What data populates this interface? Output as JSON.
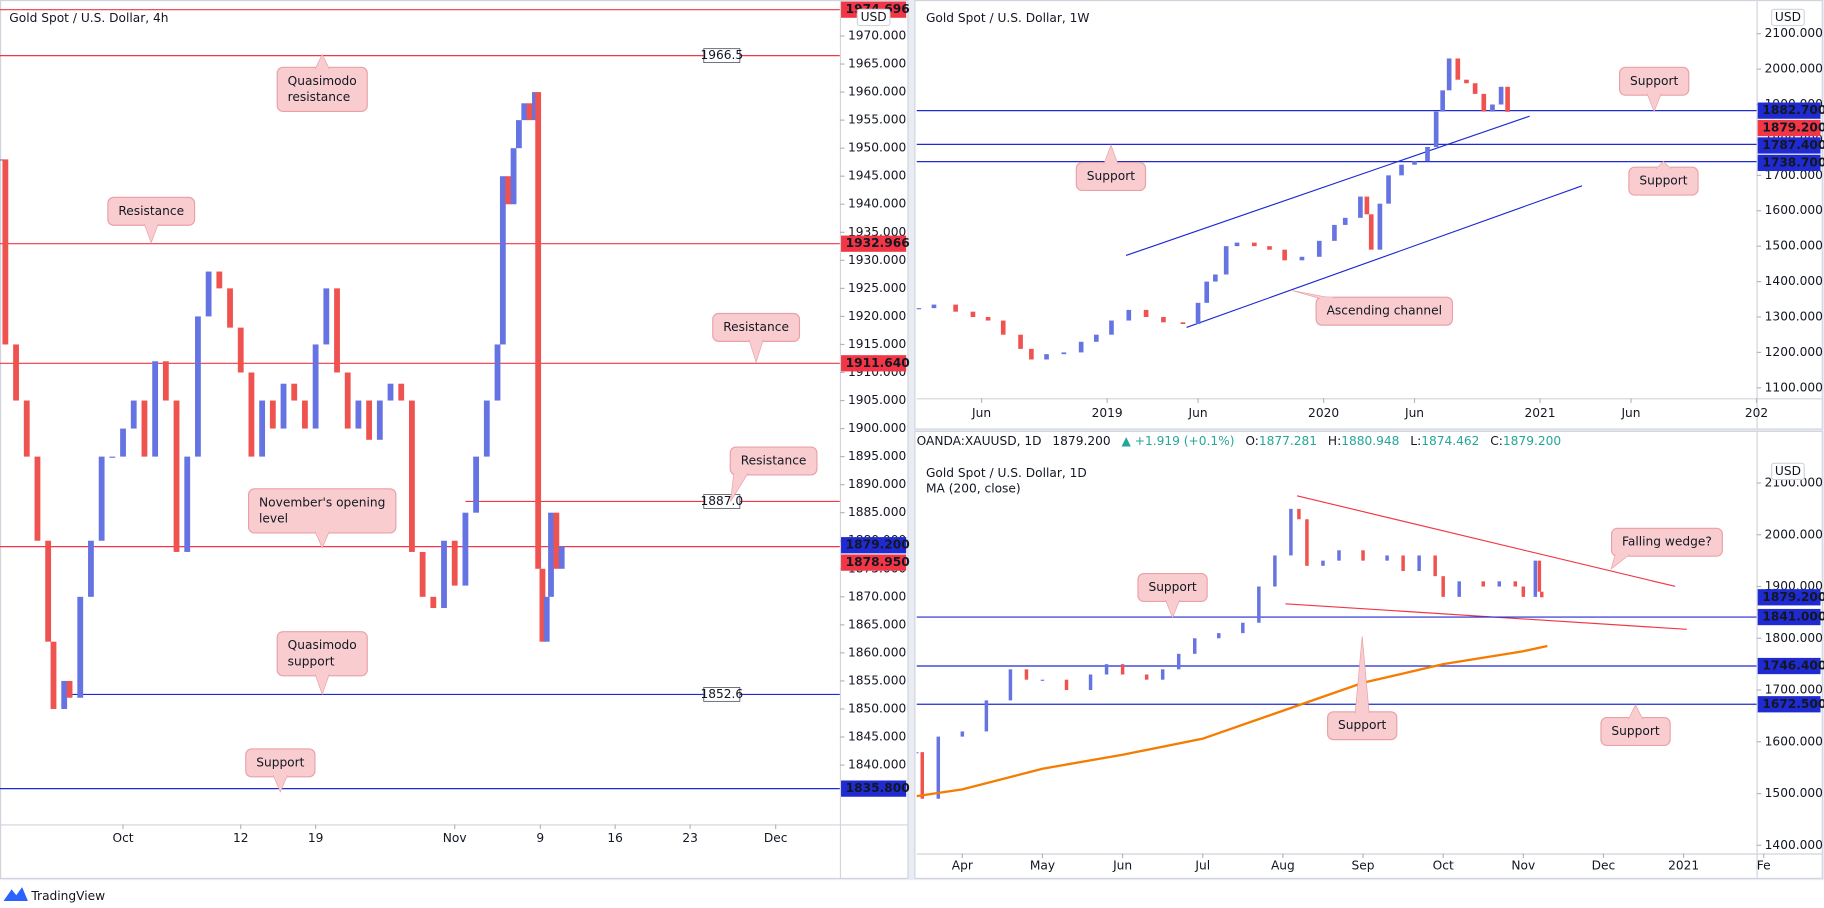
{
  "chart_data": [
    {
      "type": "candlestick",
      "title": "Gold Spot / U.S. Dollar, 4h",
      "currency": "USD",
      "up_color": "#6674e3",
      "down_color": "#ef5350",
      "grid": false,
      "x": [
        -10.5,
        -10,
        -9,
        -8,
        -7,
        -6,
        -5.5,
        -4.5,
        -4,
        -3,
        -2,
        -1,
        0,
        1,
        2,
        3,
        4,
        5,
        6,
        7,
        8,
        9,
        10,
        11,
        12,
        13,
        14,
        15,
        16,
        17,
        18,
        19,
        20,
        21,
        22,
        23,
        24,
        25,
        26,
        27,
        28,
        29,
        30,
        31,
        32,
        33,
        34,
        35,
        36,
        36.5,
        37,
        37.5,
        38,
        38.5,
        39,
        39.5,
        39.8,
        40.2,
        40.6,
        41,
        41.5,
        42
      ],
      "values": [
        1948,
        1915,
        1905,
        1895,
        1880,
        1862,
        1850,
        1855,
        1852,
        1870,
        1880,
        1895,
        1895,
        1900,
        1905,
        1895,
        1912,
        1905,
        1878,
        1895,
        1920,
        1928,
        1925,
        1918,
        1910,
        1895,
        1905,
        1900,
        1908,
        1905,
        1900,
        1915,
        1925,
        1910,
        1900,
        1905,
        1898,
        1905,
        1908,
        1905,
        1878,
        1870,
        1868,
        1880,
        1872,
        1885,
        1895,
        1905,
        1915,
        1945,
        1940,
        1950,
        1955,
        1958,
        1955,
        1960,
        1875,
        1862,
        1870,
        1885,
        1875,
        1879
      ],
      "xlim": [
        -10.5,
        68
      ],
      "xticks": [
        {
          "value": 1,
          "label": "Oct"
        },
        12,
        19,
        {
          "value": 32,
          "label": "Nov"
        },
        {
          "value": 40,
          "label": "9"
        },
        {
          "value": 47,
          "label": "16"
        },
        {
          "value": 54,
          "label": "23"
        },
        {
          "value": 62,
          "label": "Dec"
        }
      ],
      "ylim": [
        1829.42,
        1976.42
      ],
      "yticks": [
        {
          "value": 1840,
          "label": "1840.000"
        },
        {
          "value": 1845,
          "label": "1845.000"
        },
        {
          "value": 1850,
          "label": "1850.000"
        },
        {
          "value": 1855,
          "label": "1855.000"
        },
        {
          "value": 1860,
          "label": "1860.000"
        },
        {
          "value": 1865,
          "label": "1865.000"
        },
        {
          "value": 1870,
          "label": "1870.000"
        },
        {
          "value": 1875,
          "label": "1875.000"
        },
        {
          "value": 1880,
          "label": "1880.000"
        },
        {
          "value": 1885,
          "label": "1885.000"
        },
        {
          "value": 1890,
          "label": "1890.000"
        },
        {
          "value": 1895,
          "label": "1895.000"
        },
        {
          "value": 1900,
          "label": "1900.000"
        },
        {
          "value": 1905,
          "label": "1905.000"
        },
        {
          "value": 1910,
          "label": "1910.000"
        },
        {
          "value": 1915,
          "label": "1915.000"
        },
        {
          "value": 1920,
          "label": "1920.000"
        },
        {
          "value": 1925,
          "label": "1925.000"
        },
        {
          "value": 1930,
          "label": "1930.000"
        },
        {
          "value": 1935,
          "label": "1935.000"
        },
        {
          "value": 1940,
          "label": "1940.000"
        },
        {
          "value": 1945,
          "label": "1945.000"
        },
        {
          "value": 1950,
          "label": "1950.000"
        },
        {
          "value": 1955,
          "label": "1955.000"
        },
        {
          "value": 1960,
          "label": "1960.000"
        },
        {
          "value": 1965,
          "label": "1965.000"
        },
        {
          "value": 1970,
          "label": "1970.000"
        }
      ],
      "levels": [
        {
          "value": 1974.696,
          "color": "#f23645",
          "line": true,
          "tag": "axis"
        },
        {
          "value": 1966.5,
          "color": "#f23645",
          "line": true,
          "tag": "inline"
        },
        {
          "value": 1932.966,
          "color": "#f23645",
          "line": true,
          "tag": "axis"
        },
        {
          "value": 1911.64,
          "label": "1911.640",
          "color": "#f23645",
          "line": true,
          "tag": "axis"
        },
        {
          "value": 1887,
          "label": "1887.0",
          "color": "#f23645",
          "line": true,
          "tag": "inline",
          "x_from": 33
        },
        {
          "value": 1879.2,
          "label": "1879.200",
          "color": "#1f2bd1",
          "line": false,
          "tag": "axis"
        },
        {
          "value": 1878.95,
          "label": "1878.950",
          "color": "#f23645",
          "line": true,
          "tag": "axis"
        },
        {
          "value": 1852.6,
          "color": "#1f2bd1",
          "line": true,
          "tag": "inline",
          "x_from": -4
        },
        {
          "value": 1835.8,
          "label": "1835.800",
          "color": "#1f2bd1",
          "line": true,
          "tag": "axis"
        }
      ],
      "annotations": [
        [
          "Quasimodo",
          "resistance"
        ],
        [
          "Resistance"
        ],
        [
          "Resistance"
        ],
        [
          "Resistance"
        ],
        [
          "November's opening",
          "level"
        ],
        [
          "Quasimodo",
          "support"
        ],
        [
          "Support"
        ]
      ]
    },
    {
      "type": "candlestick",
      "title": "Gold Spot / U.S. Dollar, 1W",
      "currency": "USD",
      "up_color": "#6674e3",
      "down_color": "#ef5350",
      "grid": false,
      "x": [
        2018.13,
        2018.2,
        2018.3,
        2018.38,
        2018.45,
        2018.52,
        2018.6,
        2018.65,
        2018.72,
        2018.8,
        2018.88,
        2018.95,
        2019.02,
        2019.1,
        2019.18,
        2019.26,
        2019.35,
        2019.42,
        2019.46,
        2019.5,
        2019.55,
        2019.6,
        2019.68,
        2019.75,
        2019.82,
        2019.9,
        2019.98,
        2020.05,
        2020.1,
        2020.17,
        2020.2,
        2020.22,
        2020.26,
        2020.3,
        2020.36,
        2020.42,
        2020.48,
        2020.52,
        2020.55,
        2020.58,
        2020.62,
        2020.66,
        2020.7,
        2020.74,
        2020.78,
        2020.82,
        2020.85
      ],
      "values": [
        1325,
        1335,
        1315,
        1300,
        1290,
        1250,
        1210,
        1180,
        1195,
        1200,
        1230,
        1250,
        1290,
        1320,
        1300,
        1285,
        1280,
        1340,
        1400,
        1420,
        1500,
        1510,
        1500,
        1490,
        1460,
        1470,
        1515,
        1560,
        1580,
        1640,
        1590,
        1490,
        1620,
        1700,
        1730,
        1740,
        1780,
        1880,
        1940,
        2030,
        1970,
        1960,
        1930,
        1880,
        1900,
        1950,
        1879.2
      ],
      "xlim": [
        2018.12,
        2022.0
      ],
      "xticks": [
        {
          "value": 2018.42,
          "label": "Jun"
        },
        2019,
        {
          "value": 2019.42,
          "label": "Jun"
        },
        2020,
        {
          "value": 2020.42,
          "label": "Jun"
        },
        2021,
        {
          "value": 2021.42,
          "label": "Jun"
        },
        {
          "value": 2022,
          "label": "202"
        }
      ],
      "ylim": [
        1070.5,
        2195.1
      ],
      "yticks": [
        {
          "value": 1100,
          "label": "1100.000"
        },
        {
          "value": 1200,
          "label": "1200.000"
        },
        {
          "value": 1300,
          "label": "1300.000"
        },
        {
          "value": 1400,
          "label": "1400.000"
        },
        {
          "value": 1500,
          "label": "1500.000"
        },
        {
          "value": 1600,
          "label": "1600.000"
        },
        {
          "value": 1700,
          "label": "1700.000"
        },
        {
          "value": 1800,
          "label": "1800.000"
        },
        {
          "value": 1900,
          "label": "1900.000"
        },
        {
          "value": 2000,
          "label": "2000.000"
        },
        {
          "value": 2100,
          "label": "2100.000"
        }
      ],
      "levels": [
        {
          "value": 1882.7,
          "label": "1882.700",
          "color": "#1f2bd1",
          "line": true,
          "tag": "axis"
        },
        {
          "value": 1879.2,
          "label": "1879.200",
          "color": "#f23645",
          "line": false,
          "tag": "axis"
        },
        {
          "value": 1787.4,
          "label": "1787.400",
          "color": "#1f2bd1",
          "line": true,
          "tag": "axis"
        },
        {
          "value": 1738.7,
          "label": "1738.700",
          "color": "#1f2bd1",
          "line": true,
          "tag": "axis"
        }
      ],
      "annotations": [
        [
          "Support"
        ],
        [
          "Support"
        ],
        [
          "Support"
        ],
        [
          "Ascending channel"
        ]
      ]
    },
    {
      "type": "candlestick",
      "title": "Gold Spot / U.S. Dollar, 1D",
      "currency": "USD",
      "up_color": "#6674e3",
      "down_color": "#ef5350",
      "grid": false,
      "x": [
        3.43,
        3.5,
        3.7,
        4,
        4.3,
        4.6,
        4.8,
        5,
        5.3,
        5.6,
        5.8,
        6,
        6.3,
        6.5,
        6.7,
        6.9,
        7.2,
        7.5,
        7.7,
        7.9,
        8.1,
        8.2,
        8.3,
        8.5,
        8.7,
        9,
        9.3,
        9.5,
        9.7,
        9.9,
        10,
        10.2,
        10.5,
        10.7,
        10.9,
        11,
        11.15,
        11.2,
        11.23
      ],
      "values": [
        1580,
        1490,
        1610,
        1620,
        1680,
        1740,
        1720,
        1720,
        1700,
        1730,
        1750,
        1730,
        1720,
        1740,
        1770,
        1800,
        1810,
        1830,
        1900,
        1960,
        2050,
        2030,
        1940,
        1950,
        1970,
        1950,
        1960,
        1930,
        1960,
        1920,
        1880,
        1910,
        1900,
        1910,
        1900,
        1880,
        1950,
        1890,
        1879.2
      ],
      "overlays": [
        {
          "name": "MA (200, close)",
          "color": "#f57c00",
          "x": [
            3.43,
            4,
            5,
            6,
            7,
            8,
            9,
            10,
            11,
            11.3
          ],
          "values": [
            1495,
            1508,
            1548,
            1575,
            1606,
            1660,
            1714,
            1750,
            1775,
            1785
          ]
        }
      ],
      "xlim": [
        3.43,
        13.91
      ],
      "xticks": [
        {
          "value": 4,
          "label": "Apr"
        },
        {
          "value": 5,
          "label": "May"
        },
        {
          "value": 6,
          "label": "Jun"
        },
        {
          "value": 7,
          "label": "Jul"
        },
        {
          "value": 8,
          "label": "Aug"
        },
        {
          "value": 9,
          "label": "Sep"
        },
        {
          "value": 10,
          "label": "Oct"
        },
        {
          "value": 11,
          "label": "Nov"
        },
        {
          "value": 12,
          "label": "Dec"
        },
        {
          "value": 13,
          "label": "2021"
        },
        {
          "value": 14,
          "label": "Fe"
        }
      ],
      "ylim": [
        1384.3,
        2153.8
      ],
      "yticks": [
        {
          "value": 1400,
          "label": "1400.000"
        },
        {
          "value": 1500,
          "label": "1500.000"
        },
        {
          "value": 1600,
          "label": "1600.000"
        },
        {
          "value": 1700,
          "label": "1700.000"
        },
        {
          "value": 1800,
          "label": "1800.000"
        },
        {
          "value": 1900,
          "label": "1900.000"
        },
        {
          "value": 2000,
          "label": "2000.000"
        },
        {
          "value": 2100,
          "label": "2100.000"
        }
      ],
      "levels": [
        {
          "value": 1879.2,
          "label": "1879.200",
          "color": "#1f2bd1",
          "line": false,
          "tag": "axis"
        },
        {
          "value": 1841,
          "label": "1841.000",
          "color": "#1f2bd1",
          "line": true,
          "tag": "axis"
        },
        {
          "value": 1746.4,
          "label": "1746.400",
          "color": "#1f2bd1",
          "line": true,
          "tag": "axis"
        },
        {
          "value": 1672.5,
          "label": "1672.500",
          "color": "#1f2bd1",
          "line": true,
          "tag": "axis"
        }
      ],
      "annotations": [
        [
          "Falling wedge?"
        ],
        [
          "Support"
        ],
        [
          "Support"
        ],
        [
          "Support"
        ]
      ]
    }
  ],
  "info_bar": {
    "symbol": "OANDA:XAUUSD, 1D",
    "last": "1879.200",
    "change": "▲ +1.919 (+0.1%)",
    "change_color": "#26a69a",
    "fields": [
      [
        "O:",
        "1877.281"
      ],
      [
        "H:",
        "1880.948"
      ],
      [
        "L:",
        "1874.462"
      ],
      [
        "C:",
        "1879.200"
      ]
    ]
  },
  "branding": "TradingView"
}
